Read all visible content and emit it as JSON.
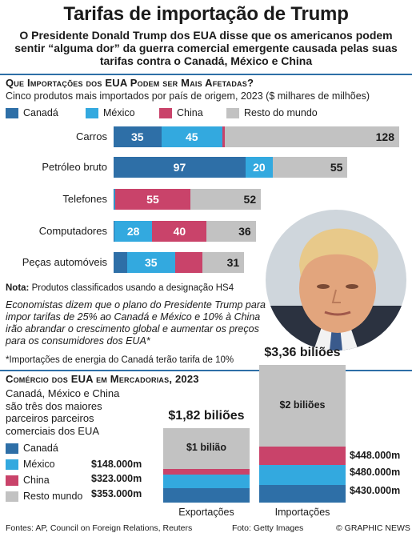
{
  "header": {
    "title": "Tarifas de importação de Trump",
    "subtitle": "O Presidente Donald Trump dos EUA disse que os americanos podem sentir “alguma dor” da guerra comercial emergente causada pelas suas tarifas contra o Canadá, México e China"
  },
  "colors": {
    "canada": "#2e6fa7",
    "mexico": "#33a9df",
    "china": "#c9436a",
    "rest": "#c2c2c2",
    "accent": "#2e6fa7"
  },
  "section1": {
    "title": "Que Importações dos EUA Podem ser Mais Afetadas?",
    "subtitle": "Cinco produtos mais importados por país de origem, 2023 ($ milhares de milhões)",
    "legend": [
      "Canadá",
      "México",
      "China",
      "Resto do mundo"
    ],
    "note_bold": "Nota:",
    "note": " Produtos classificados usando a designação HS4",
    "quote": "Economistas dizem que o plano do Presidente Trump para impor tarifas de 25% ao Canadá e México e 10% à China irão abrandar o crescimento global e aumentar os preços para os consumidores dos EUA*",
    "footnote": "*Importações de energia do Canadá terão tarifa de 10%"
  },
  "chart_data": [
    {
      "type": "bar",
      "title": "Que Importações dos EUA Podem ser Mais Afetadas?",
      "categories": [
        "Carros",
        "Petróleo bruto",
        "Telefones",
        "Computadores",
        "Peças automóveis"
      ],
      "series": [
        {
          "name": "Canadá",
          "values": [
            35,
            97,
            0.3,
            0.5,
            10
          ]
        },
        {
          "name": "México",
          "values": [
            45,
            20,
            1,
            28,
            35
          ]
        },
        {
          "name": "China",
          "values": [
            2,
            0,
            55,
            40,
            20
          ]
        },
        {
          "name": "Resto do mundo",
          "values": [
            128,
            55,
            52,
            36,
            31
          ]
        }
      ],
      "labels": [
        [
          "35",
          "45",
          "",
          "128"
        ],
        [
          "97",
          "20",
          "",
          "55"
        ],
        [
          "",
          "",
          "55",
          "52"
        ],
        [
          "",
          "28",
          "40",
          "36"
        ],
        [
          "",
          "35",
          "",
          "31"
        ]
      ],
      "xlim": [
        0,
        210
      ]
    },
    {
      "type": "bar",
      "title": "Comércio dos EUA em Mercadorias, 2023",
      "categories": [
        "Exportações",
        "Importações"
      ],
      "totals": [
        "$1,82 biliões",
        "$3,36 biliões"
      ],
      "rest_labels": [
        "$1 bilião",
        "$2 biliões"
      ],
      "series": [
        {
          "name": "Canadá",
          "values": [
            353,
            430
          ],
          "labels": [
            "$353.000m",
            "$430.000m"
          ]
        },
        {
          "name": "México",
          "values": [
            323,
            480
          ],
          "labels": [
            "$323.000m",
            "$480.000m"
          ]
        },
        {
          "name": "China",
          "values": [
            148,
            448
          ],
          "labels": [
            "$148.000m",
            "$448.000m"
          ]
        },
        {
          "name": "Resto do mundo",
          "values": [
            996,
            2002
          ]
        }
      ]
    }
  ],
  "section2": {
    "title": "Comércio dos EUA em Mercadorias, 2023",
    "desc": "Canadá, México e China são três dos maiores parceiros parceiros comerciais dos EUA",
    "legend": [
      "Canadá",
      "México",
      "China",
      "Resto mundo"
    ]
  },
  "footer": {
    "sources": "Fontes: AP, Council on Foreign Relations, Reuters",
    "photo": "Foto: Getty Images",
    "brand": "© GRAPHIC NEWS"
  }
}
